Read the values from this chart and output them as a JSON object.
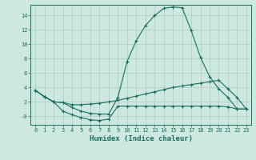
{
  "xlabel": "Humidex (Indice chaleur)",
  "background_color": "#cce8e0",
  "grid_color": "#b0cfc8",
  "line_color": "#1a6e5e",
  "xlim": [
    -0.5,
    23.5
  ],
  "ylim": [
    -1.2,
    15.5
  ],
  "xticks": [
    0,
    1,
    2,
    3,
    4,
    5,
    6,
    7,
    8,
    9,
    10,
    11,
    12,
    13,
    14,
    15,
    16,
    17,
    18,
    19,
    20,
    21,
    22,
    23
  ],
  "yticks": [
    0,
    2,
    4,
    6,
    8,
    10,
    12,
    14
  ],
  "ytick_labels": [
    "-0",
    "2",
    "4",
    "6",
    "8",
    "10",
    "12",
    "14"
  ],
  "line1_y": [
    3.6,
    2.7,
    2.0,
    1.9,
    1.2,
    0.7,
    0.4,
    0.3,
    0.3,
    2.6,
    7.6,
    10.5,
    12.6,
    14.0,
    15.0,
    15.2,
    15.1,
    11.9,
    8.2,
    5.5,
    3.8,
    2.6,
    1.0,
    1.0
  ],
  "line2_y": [
    3.6,
    2.7,
    2.0,
    1.9,
    1.6,
    1.6,
    1.7,
    1.8,
    2.0,
    2.2,
    2.5,
    2.8,
    3.1,
    3.4,
    3.7,
    4.0,
    4.2,
    4.4,
    4.6,
    4.8,
    5.0,
    3.8,
    2.6,
    1.0
  ],
  "line3_y": [
    3.6,
    2.7,
    2.0,
    0.7,
    0.2,
    -0.2,
    -0.5,
    -0.6,
    -0.4,
    1.4,
    1.4,
    1.4,
    1.4,
    1.4,
    1.4,
    1.4,
    1.4,
    1.4,
    1.4,
    1.4,
    1.4,
    1.3,
    1.0,
    1.0
  ]
}
